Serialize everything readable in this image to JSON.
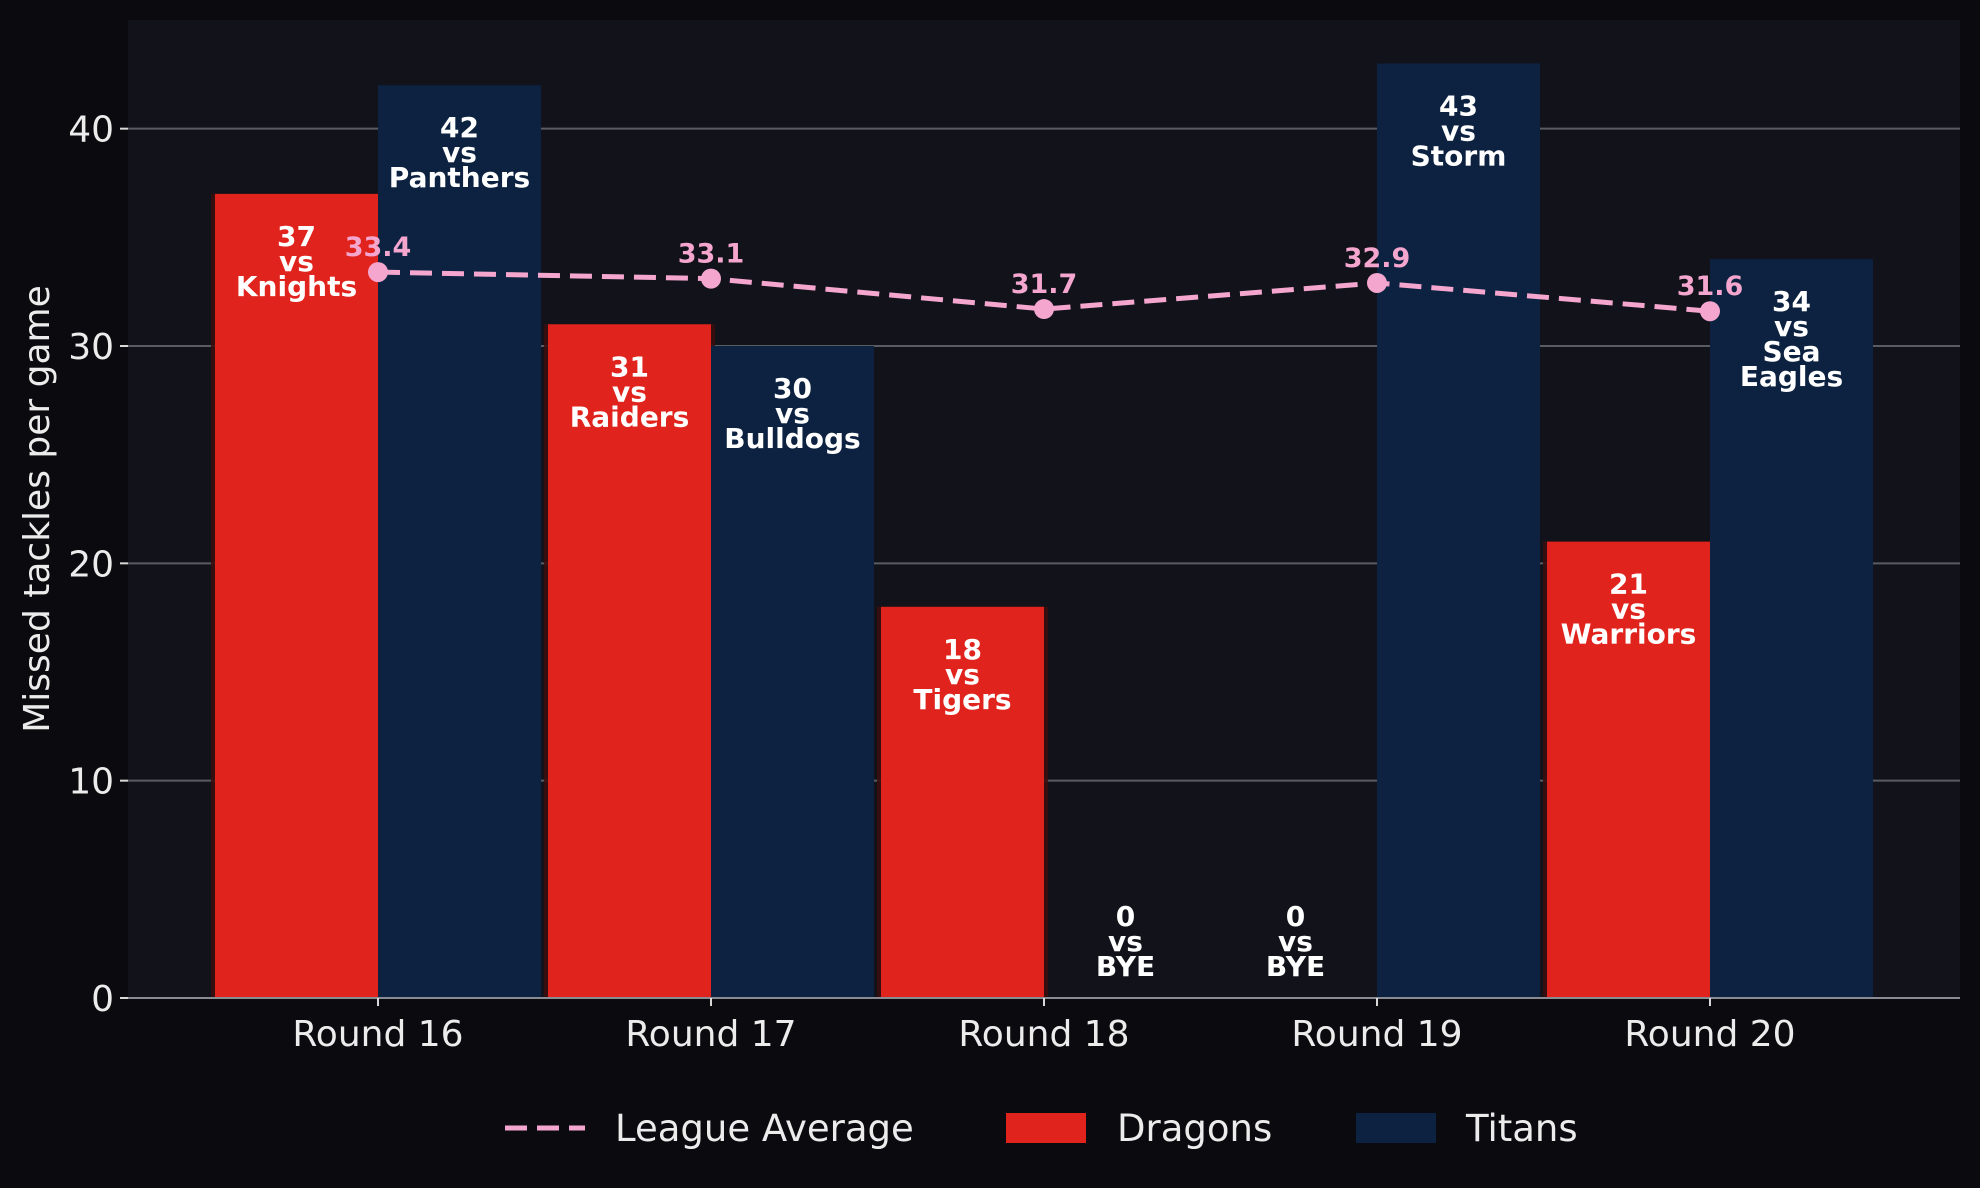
{
  "chart_data": {
    "type": "bar",
    "categories": [
      "Round 16",
      "Round 17",
      "Round 18",
      "Round 19",
      "Round 20"
    ],
    "ylabel": "Missed tackles per game",
    "xlabel": "",
    "ylim": [
      0,
      45
    ],
    "yticks": [
      0,
      10,
      20,
      30,
      40
    ],
    "grid": true,
    "legend_position": "bottom-center",
    "series": [
      {
        "name": "Dragons",
        "type": "bar",
        "color": "#e0231c",
        "values": [
          37,
          31,
          18,
          0,
          21
        ],
        "bar_labels": [
          [
            "37",
            "vs",
            "Knights"
          ],
          [
            "31",
            "vs",
            "Raiders"
          ],
          [
            "18",
            "vs",
            "Tigers"
          ],
          [
            "0",
            "vs",
            "BYE"
          ],
          [
            "21",
            "vs",
            "Warriors"
          ]
        ]
      },
      {
        "name": "Titans",
        "type": "bar",
        "color": "#0c2240",
        "values": [
          42,
          30,
          0,
          43,
          34
        ],
        "bar_labels": [
          [
            "42",
            "vs",
            "Panthers"
          ],
          [
            "30",
            "vs",
            "Bulldogs"
          ],
          [
            "0",
            "vs",
            "BYE"
          ],
          [
            "43",
            "vs",
            "Storm"
          ],
          [
            "34",
            "vs",
            "Sea",
            "Eagles"
          ]
        ]
      },
      {
        "name": "League Average",
        "type": "line",
        "style": "dashed",
        "color": "#f4a6cf",
        "values": [
          33.4,
          33.1,
          31.7,
          32.9,
          31.6
        ],
        "point_labels": [
          "33.4",
          "33.1",
          "31.7",
          "32.9",
          "31.6"
        ]
      }
    ],
    "legend": [
      "League Average",
      "Dragons",
      "Titans"
    ]
  }
}
